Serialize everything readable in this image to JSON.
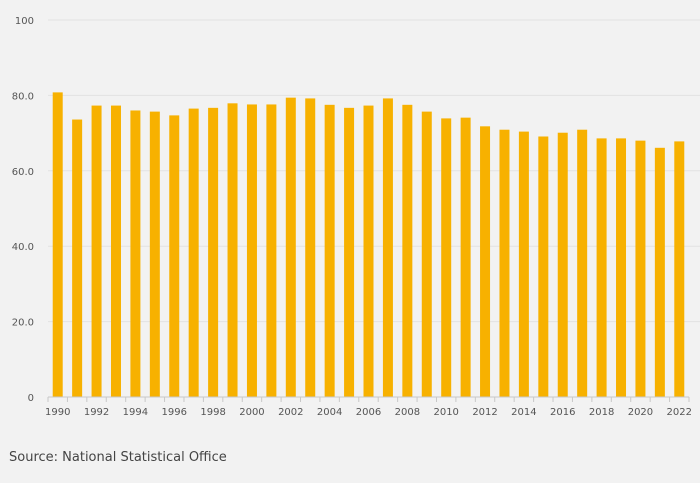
{
  "chart_data": {
    "type": "bar",
    "categories": [
      "1990",
      "1991",
      "1992",
      "1993",
      "1994",
      "1995",
      "1996",
      "1997",
      "1998",
      "1999",
      "2000",
      "2001",
      "2002",
      "2003",
      "2004",
      "2005",
      "2006",
      "2007",
      "2008",
      "2009",
      "2010",
      "2011",
      "2012",
      "2013",
      "2014",
      "2015",
      "2016",
      "2017",
      "2018",
      "2019",
      "2020",
      "2021",
      "2022"
    ],
    "values": [
      80.8,
      73.6,
      77.3,
      77.3,
      76.0,
      75.7,
      74.7,
      76.5,
      76.7,
      77.9,
      77.6,
      77.6,
      79.4,
      79.2,
      77.5,
      76.7,
      77.3,
      79.2,
      77.5,
      75.7,
      73.9,
      74.1,
      71.8,
      70.9,
      70.4,
      69.1,
      70.1,
      70.9,
      68.6,
      68.6,
      68.0,
      66.1,
      67.8
    ],
    "x_tick_labels": [
      "1990",
      "1992",
      "1994",
      "1996",
      "1998",
      "2000",
      "2002",
      "2004",
      "2006",
      "2008",
      "2010",
      "2012",
      "2014",
      "2016",
      "2018",
      "2020",
      "2022"
    ],
    "y_ticks": [
      0,
      20,
      40,
      60,
      80,
      100
    ],
    "y_tick_labels": [
      "0",
      "20.0",
      "40.0",
      "60.0",
      "80.0",
      "100"
    ],
    "ylim": [
      0,
      100
    ],
    "grid": true,
    "bar_color": "#f7b100",
    "title": "",
    "xlabel": "",
    "ylabel": ""
  },
  "footer": {
    "source": "Source: National Statistical Office"
  }
}
